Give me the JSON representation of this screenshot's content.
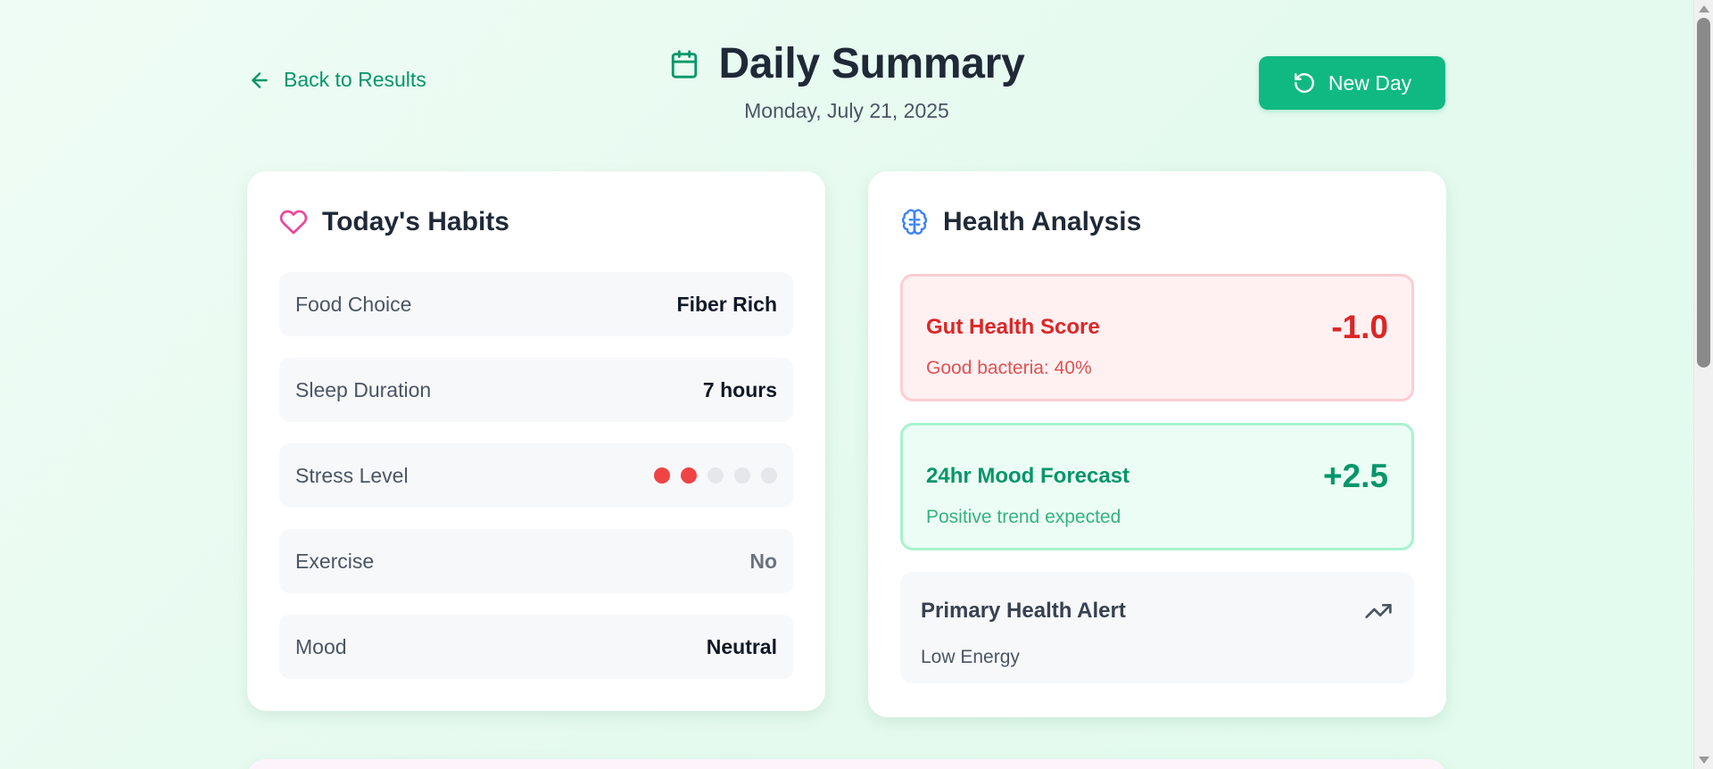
{
  "header": {
    "back_label": "Back to Results",
    "title": "Daily Summary",
    "date": "Monday, July 21, 2025",
    "new_day_label": "New Day",
    "icons": {
      "back": "arrow-left-icon",
      "title": "calendar-icon",
      "new_day": "refresh-icon"
    }
  },
  "habits": {
    "title": "Today's Habits",
    "icon": "heart-icon",
    "rows": [
      {
        "label": "Food Choice",
        "value": "Fiber Rich"
      },
      {
        "label": "Sleep Duration",
        "value": "7 hours"
      },
      {
        "label": "Stress Level",
        "level": 2,
        "max": 5
      },
      {
        "label": "Exercise",
        "value": "No"
      },
      {
        "label": "Mood",
        "value": "Neutral"
      }
    ]
  },
  "analysis": {
    "title": "Health Analysis",
    "icon": "brain-icon",
    "gut": {
      "name": "Gut Health Score",
      "value": "-1.0",
      "sub": "Good bacteria: 40%"
    },
    "mood": {
      "name": "24hr Mood Forecast",
      "value": "+2.5",
      "sub": "Positive trend expected"
    },
    "alert": {
      "title": "Primary Health Alert",
      "value": "Low Energy",
      "icon": "trending-up-icon"
    }
  },
  "colors": {
    "accent": "#10b981",
    "accent_dark": "#059669",
    "danger": "#dc2626",
    "stress_on": "#ef4444",
    "stress_off": "#e5e7eb"
  }
}
